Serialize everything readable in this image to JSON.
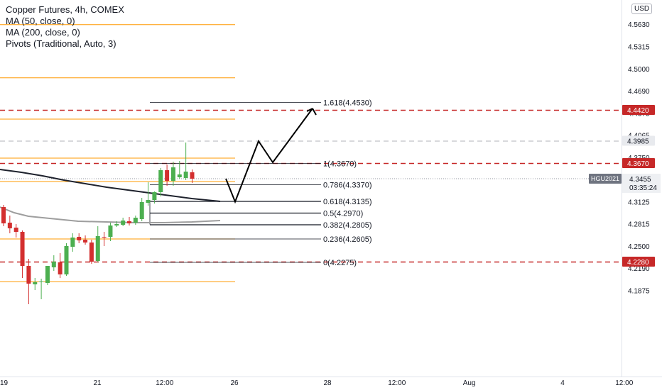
{
  "legend": {
    "title": "Copper Futures, 4h, COMEX",
    "ma50": "MA (50, close, 0)",
    "ma200": "MA (200, close, 0)",
    "pivots": "Pivots (Traditional, Auto, 3)"
  },
  "currency_badge": "USD",
  "colors": {
    "up": "#4caf50",
    "down": "#d32f2f",
    "pivot": "#ff9800",
    "level_red": "#c62828",
    "ma": "#9e9e9e",
    "axis_text": "#131722",
    "grid": "#e0e3eb"
  },
  "price_axis": {
    "ticks": [
      "4.5630",
      "4.5315",
      "4.5000",
      "4.4690",
      "4.4375",
      "4.4065",
      "4.3750",
      "4.3125",
      "4.2815",
      "4.2500",
      "4.2190",
      "4.1875"
    ],
    "labels": [
      {
        "text": "4.4420",
        "price": 4.442,
        "kind": "red"
      },
      {
        "text": "4.3985",
        "price": 4.3985,
        "kind": "gray"
      },
      {
        "text": "4.3670",
        "price": 4.367,
        "kind": "red"
      },
      {
        "text": "4.2280",
        "price": 4.228,
        "kind": "red"
      }
    ],
    "current": {
      "symbol": "HGU2021",
      "price_text": "4.3455",
      "price": 4.3455,
      "countdown": "03:35:24"
    }
  },
  "time_axis": {
    "ticks": [
      "19",
      "21",
      "12:00",
      "26",
      "28",
      "12:00",
      "Aug",
      "4",
      "12:00"
    ]
  },
  "horizontal_levels": [
    {
      "price": 4.442,
      "style": "red"
    },
    {
      "price": 4.3985,
      "style": "gray"
    },
    {
      "price": 4.367,
      "style": "red"
    },
    {
      "price": 4.228,
      "style": "red"
    }
  ],
  "pivot_levels": [
    4.5628,
    4.4877,
    4.4295,
    4.3745,
    4.3415,
    4.2605,
    4.2
  ],
  "fib_levels": [
    {
      "label": "1.618(4.4530)",
      "price": 4.453,
      "bold": false
    },
    {
      "label": "1(4.3670)",
      "price": 4.367,
      "bold": false
    },
    {
      "label": "0.786(4.3370)",
      "price": 4.337,
      "bold": false
    },
    {
      "label": "0.618(4.3135)",
      "price": 4.3135,
      "bold": true
    },
    {
      "label": "0.5(4.2970)",
      "price": 4.297,
      "bold": true
    },
    {
      "label": "0.382(4.2805)",
      "price": 4.2805,
      "bold": true
    },
    {
      "label": "0.236(4.2605)",
      "price": 4.2605,
      "bold": false
    },
    {
      "label": "0(4.2275)",
      "price": 4.2275,
      "bold": false
    }
  ],
  "chart_data": {
    "type": "candlestick",
    "title": "Copper Futures, 4h, COMEX",
    "ylim": [
      4.17,
      4.575
    ],
    "candles": [
      {
        "o": 4.305,
        "h": 4.308,
        "l": 4.278,
        "c": 4.282
      },
      {
        "o": 4.283,
        "h": 4.293,
        "l": 4.268,
        "c": 4.275
      },
      {
        "o": 4.276,
        "h": 4.281,
        "l": 4.262,
        "c": 4.27
      },
      {
        "o": 4.27,
        "h": 4.272,
        "l": 4.205,
        "c": 4.222
      },
      {
        "o": 4.222,
        "h": 4.232,
        "l": 4.168,
        "c": 4.197
      },
      {
        "o": 4.196,
        "h": 4.205,
        "l": 4.188,
        "c": 4.199
      },
      {
        "o": 4.199,
        "h": 4.204,
        "l": 4.175,
        "c": 4.2
      },
      {
        "o": 4.198,
        "h": 4.222,
        "l": 4.195,
        "c": 4.222
      },
      {
        "o": 4.22,
        "h": 4.237,
        "l": 4.215,
        "c": 4.228
      },
      {
        "o": 4.227,
        "h": 4.24,
        "l": 4.205,
        "c": 4.21
      },
      {
        "o": 4.21,
        "h": 4.254,
        "l": 4.208,
        "c": 4.25
      },
      {
        "o": 4.249,
        "h": 4.268,
        "l": 4.242,
        "c": 4.262
      },
      {
        "o": 4.263,
        "h": 4.268,
        "l": 4.254,
        "c": 4.258
      },
      {
        "o": 4.259,
        "h": 4.265,
        "l": 4.252,
        "c": 4.255
      },
      {
        "o": 4.255,
        "h": 4.259,
        "l": 4.225,
        "c": 4.228
      },
      {
        "o": 4.229,
        "h": 4.278,
        "l": 4.227,
        "c": 4.264
      },
      {
        "o": 4.263,
        "h": 4.27,
        "l": 4.25,
        "c": 4.262
      },
      {
        "o": 4.263,
        "h": 4.283,
        "l": 4.257,
        "c": 4.279
      },
      {
        "o": 4.279,
        "h": 4.285,
        "l": 4.277,
        "c": 4.281
      },
      {
        "o": 4.28,
        "h": 4.29,
        "l": 4.278,
        "c": 4.286
      },
      {
        "o": 4.285,
        "h": 4.291,
        "l": 4.279,
        "c": 4.282
      },
      {
        "o": 4.283,
        "h": 4.293,
        "l": 4.28,
        "c": 4.29
      },
      {
        "o": 4.288,
        "h": 4.318,
        "l": 4.285,
        "c": 4.312
      },
      {
        "o": 4.311,
        "h": 4.34,
        "l": 4.307,
        "c": 4.315
      },
      {
        "o": 4.315,
        "h": 4.327,
        "l": 4.31,
        "c": 4.326
      },
      {
        "o": 4.326,
        "h": 4.36,
        "l": 4.32,
        "c": 4.357
      },
      {
        "o": 4.357,
        "h": 4.365,
        "l": 4.335,
        "c": 4.342
      },
      {
        "o": 4.342,
        "h": 4.369,
        "l": 4.335,
        "c": 4.361
      },
      {
        "o": 4.347,
        "h": 4.37,
        "l": 4.345,
        "c": 4.351
      },
      {
        "o": 4.346,
        "h": 4.396,
        "l": 4.343,
        "c": 4.355
      },
      {
        "o": 4.354,
        "h": 4.358,
        "l": 4.339,
        "c": 4.345
      }
    ],
    "ma200": [
      4.358,
      4.354,
      4.349,
      4.343,
      4.338,
      4.333,
      4.329,
      4.325,
      4.321,
      4.317,
      4.313
    ],
    "ma50": [
      4.305,
      4.297,
      4.292,
      4.289,
      4.285,
      4.284,
      4.283,
      4.283,
      4.284,
      4.286
    ],
    "projection": [
      [
        4.345,
        4.334
      ],
      [
        4.3125,
        4.312
      ],
      [
        4.362,
        4.398
      ],
      [
        4.37,
        4.368
      ],
      [
        4.444,
        4.437
      ]
    ]
  }
}
